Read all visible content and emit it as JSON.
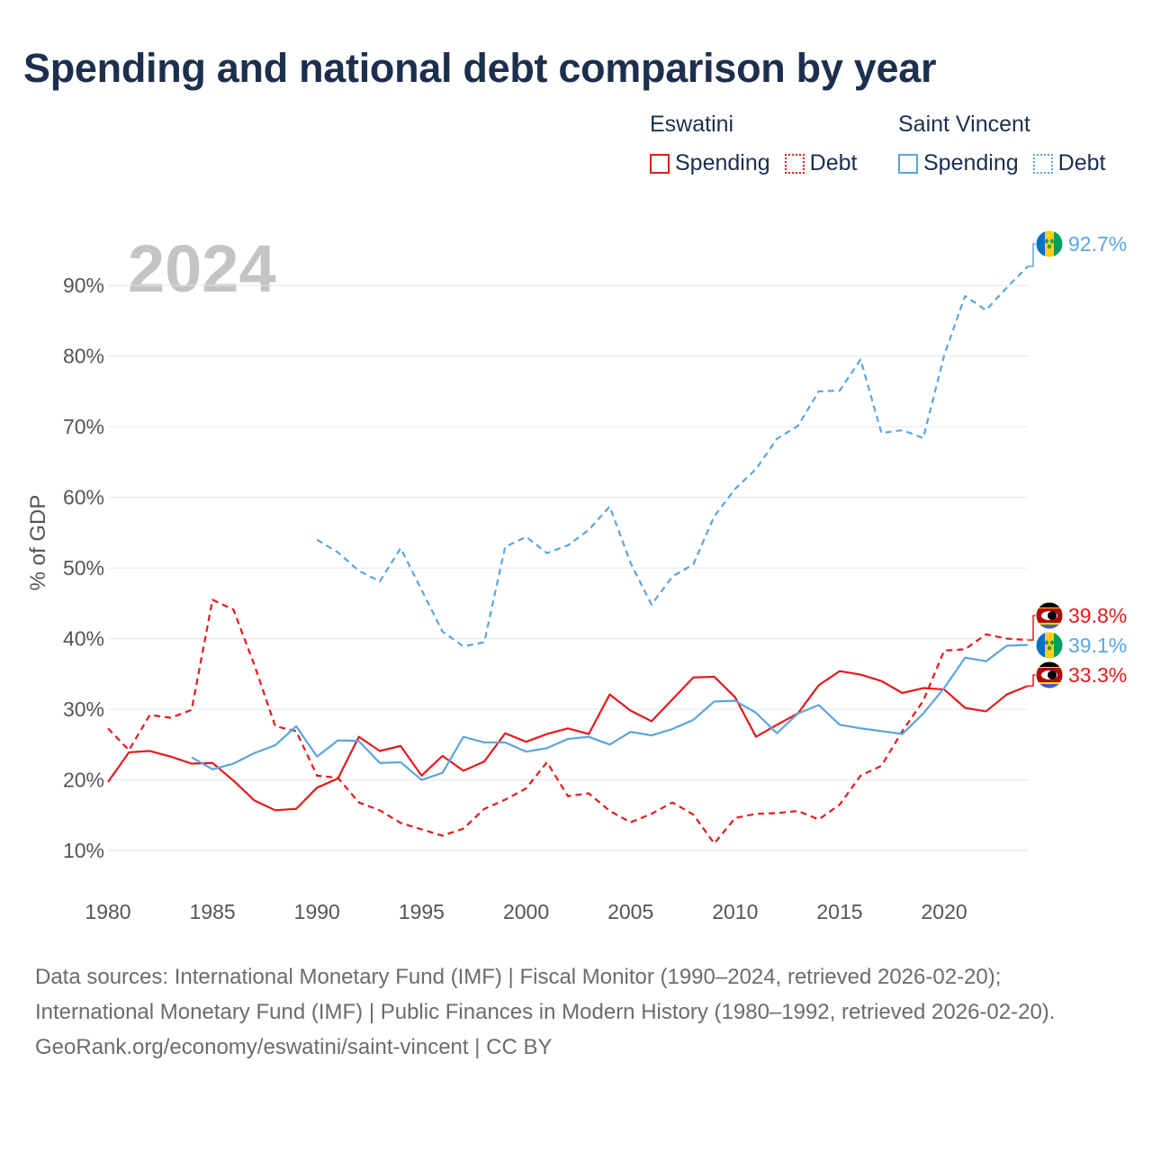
{
  "title": "Spending and national debt comparison by year",
  "legend": [
    {
      "country": "Eswatini",
      "color": "#e41a1c",
      "items": [
        {
          "label": "Spending",
          "style": "solid"
        },
        {
          "label": "Debt",
          "style": "dotted"
        }
      ]
    },
    {
      "country": "Saint Vincent",
      "color": "#5aa5e0",
      "items": [
        {
          "label": "Spending",
          "style": "solid"
        },
        {
          "label": "Debt",
          "style": "dotted"
        }
      ]
    }
  ],
  "footer": {
    "sources": "Data sources: International Monetary Fund (IMF) | Fiscal Monitor (1990–2024, retrieved 2026-02-20); International Monetary Fund (IMF) | Public Finances in Modern History (1980–1992, retrieved 2026-02-20).",
    "attribution": "GeoRank.org/economy/eswatini/saint-vincent | CC BY"
  },
  "chart_data": {
    "type": "line",
    "year_label": "2024",
    "ylabel": "% of GDP",
    "xlabel": "",
    "xlim": [
      1980,
      2024
    ],
    "ylim": [
      3,
      96
    ],
    "x_ticks": [
      1980,
      1985,
      1990,
      1995,
      2000,
      2005,
      2010,
      2015,
      2020
    ],
    "y_ticks": [
      10,
      20,
      30,
      40,
      50,
      60,
      70,
      80,
      90
    ],
    "y_tick_suffix": "%",
    "grid": true,
    "series": [
      {
        "name": "Eswatini Spending",
        "country": "Eswatini",
        "color": "#e41a1c",
        "dashed": false,
        "x_start": 1980,
        "values": [
          19.7,
          23.9,
          24.1,
          23.3,
          22.3,
          22.4,
          19.9,
          17.1,
          15.7,
          15.9,
          18.9,
          20.2,
          26.1,
          24.1,
          24.8,
          20.6,
          23.4,
          21.3,
          22.6,
          26.6,
          25.4,
          26.5,
          27.3,
          26.5,
          32.1,
          29.8,
          28.3,
          31.4,
          34.5,
          34.6,
          31.7,
          26.1,
          27.8,
          29.4,
          33.4,
          35.4,
          34.9,
          34.0,
          32.3,
          33.0,
          32.8,
          30.2,
          29.7,
          32.1,
          33.3
        ],
        "end_label": "33.3%",
        "end_value": 33.3
      },
      {
        "name": "Eswatini Debt",
        "country": "Eswatini",
        "color": "#e41a1c",
        "dashed": true,
        "x_start": 1980,
        "values": [
          27.3,
          24.2,
          29.2,
          28.8,
          29.9,
          45.5,
          44.1,
          36.3,
          27.6,
          26.9,
          20.6,
          20.3,
          16.8,
          15.7,
          13.9,
          13.0,
          12.1,
          13.1,
          15.9,
          17.2,
          18.8,
          22.5,
          17.7,
          18.1,
          15.6,
          14.0,
          15.2,
          16.8,
          15.1,
          11.0,
          14.6,
          15.2,
          15.3,
          15.6,
          14.4,
          16.5,
          20.6,
          22.0,
          26.9,
          31.2,
          38.3,
          38.5,
          40.6,
          40.0,
          39.8
        ],
        "end_label": "39.8%",
        "end_value": 39.8
      },
      {
        "name": "Saint Vincent Spending",
        "country": "Saint Vincent",
        "color": "#5aa5e0",
        "dashed": false,
        "x_start": 1984,
        "values": [
          23.2,
          21.5,
          22.3,
          23.8,
          24.9,
          27.6,
          23.3,
          25.6,
          25.5,
          22.4,
          22.5,
          20.0,
          21.0,
          26.1,
          25.3,
          25.3,
          24.0,
          24.5,
          25.8,
          26.1,
          25.0,
          26.8,
          26.3,
          27.2,
          28.5,
          31.1,
          31.2,
          29.5,
          26.6,
          29.4,
          30.6,
          27.8,
          27.3,
          26.9,
          26.5,
          29.4,
          33.0,
          37.3,
          36.8,
          39.0,
          39.1
        ],
        "end_label": "39.1%",
        "end_value": 39.1
      },
      {
        "name": "Saint Vincent Debt",
        "country": "Saint Vincent",
        "color": "#5aa5e0",
        "dashed": true,
        "x_start": 1990,
        "values": [
          54.0,
          52.2,
          49.6,
          48.1,
          52.8,
          46.9,
          41.0,
          38.9,
          39.5,
          53.0,
          54.4,
          52.1,
          53.2,
          55.4,
          58.7,
          50.7,
          44.8,
          48.8,
          50.5,
          57.3,
          61.2,
          64.0,
          68.3,
          70.1,
          75.0,
          75.1,
          79.5,
          69.1,
          69.5,
          68.4,
          80.1,
          88.5,
          86.5,
          89.7,
          92.7
        ],
        "end_label": "92.7%",
        "end_value": 92.7
      }
    ]
  }
}
